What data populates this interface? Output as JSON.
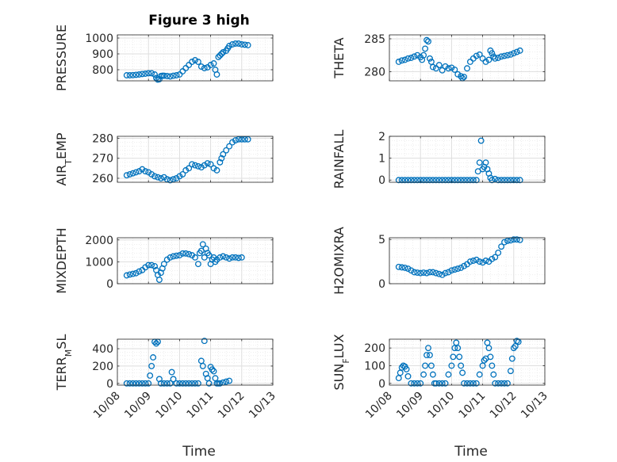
{
  "figure": {
    "title": "Figure 3 high",
    "xlabel": "Time",
    "x_ticks": [
      "10/08",
      "10/09",
      "10/10",
      "10/11",
      "10/12",
      "10/13"
    ],
    "marker_color": "#0072bd",
    "grid": "major and minor dotted",
    "marker": "open circle"
  },
  "chart_data": [
    {
      "type": "scatter",
      "ylabel": "PRESSURE",
      "yticks": [
        "800",
        "900",
        "1000"
      ],
      "ylim": [
        730,
        1020
      ],
      "x_range": [
        "10/08",
        "10/13"
      ],
      "x": [
        8.3,
        8.4,
        8.5,
        8.6,
        8.7,
        8.8,
        8.9,
        9.0,
        9.1,
        9.2,
        9.25,
        9.3,
        9.35,
        9.4,
        9.45,
        9.5,
        9.6,
        9.7,
        9.8,
        9.9,
        10.0,
        10.1,
        10.2,
        10.3,
        10.4,
        10.5,
        10.6,
        10.7,
        10.8,
        10.9,
        11.0,
        11.1,
        11.15,
        11.2,
        11.25,
        11.3,
        11.35,
        11.4,
        11.5,
        11.55,
        11.6,
        11.7,
        11.8,
        11.9,
        12.0,
        12.1,
        12.2
      ],
      "y": [
        765,
        765,
        766,
        768,
        770,
        773,
        775,
        778,
        778,
        770,
        748,
        738,
        740,
        760,
        762,
        762,
        760,
        758,
        762,
        765,
        770,
        790,
        810,
        830,
        850,
        860,
        850,
        820,
        810,
        815,
        830,
        840,
        800,
        770,
        880,
        890,
        900,
        910,
        920,
        935,
        950,
        960,
        965,
        965,
        960,
        958,
        955
      ]
    },
    {
      "type": "scatter",
      "ylabel": "THETA",
      "yticks": [
        "280",
        "285"
      ],
      "ylim": [
        278.6,
        285.6
      ],
      "x_range": [
        "10/08",
        "10/13"
      ],
      "x": [
        8.3,
        8.4,
        8.5,
        8.6,
        8.7,
        8.8,
        8.9,
        9.0,
        9.05,
        9.1,
        9.15,
        9.2,
        9.25,
        9.3,
        9.35,
        9.4,
        9.5,
        9.6,
        9.7,
        9.8,
        9.9,
        10.0,
        10.1,
        10.2,
        10.3,
        10.35,
        10.4,
        10.5,
        10.6,
        10.7,
        10.8,
        10.9,
        11.0,
        11.1,
        11.2,
        11.25,
        11.3,
        11.35,
        11.4,
        11.5,
        11.6,
        11.7,
        11.8,
        11.9,
        12.0,
        12.1,
        12.2
      ],
      "y": [
        281.5,
        281.7,
        281.8,
        282.0,
        282.1,
        282.3,
        282.5,
        282.2,
        281.8,
        282.5,
        283.5,
        284.8,
        284.6,
        282.0,
        281.5,
        280.7,
        280.5,
        281.0,
        280.2,
        280.8,
        280.5,
        280.6,
        280.3,
        279.6,
        279.3,
        279.0,
        279.2,
        280.5,
        281.5,
        282.0,
        282.4,
        282.6,
        282.0,
        281.5,
        281.8,
        283.2,
        282.8,
        282.3,
        282.0,
        282.1,
        282.3,
        282.4,
        282.5,
        282.6,
        282.8,
        283.0,
        283.2
      ]
    },
    {
      "type": "scatter",
      "ylabel": "AIR_TEMP",
      "yticks": [
        "260",
        "270",
        "280"
      ],
      "ylim": [
        258,
        281
      ],
      "x_range": [
        "10/08",
        "10/13"
      ],
      "x": [
        8.3,
        8.4,
        8.5,
        8.6,
        8.7,
        8.8,
        8.9,
        9.0,
        9.1,
        9.2,
        9.3,
        9.4,
        9.5,
        9.6,
        9.7,
        9.8,
        9.9,
        10.0,
        10.1,
        10.2,
        10.3,
        10.4,
        10.5,
        10.6,
        10.7,
        10.8,
        10.9,
        11.0,
        11.1,
        11.2,
        11.3,
        11.35,
        11.4,
        11.5,
        11.6,
        11.7,
        11.8,
        11.9,
        12.0,
        12.1,
        12.2
      ],
      "y": [
        261.5,
        262,
        262.5,
        263,
        263.5,
        264.5,
        263.5,
        263,
        262,
        261,
        260.5,
        260,
        260.5,
        259.5,
        259,
        259.5,
        260,
        261,
        262,
        264,
        265,
        267,
        266.5,
        266,
        265.5,
        266.5,
        267.5,
        267,
        265,
        264,
        268,
        270,
        272,
        274,
        276,
        278,
        279,
        279.5,
        279.5,
        279.5,
        279.5
      ]
    },
    {
      "type": "scatter",
      "ylabel": "RAINFALL",
      "yticks": [
        "0",
        "1",
        "2"
      ],
      "ylim": [
        -0.1,
        2.0
      ],
      "x_range": [
        "10/08",
        "10/13"
      ],
      "x": [
        8.3,
        8.4,
        8.5,
        8.6,
        8.7,
        8.8,
        8.9,
        9.0,
        9.1,
        9.2,
        9.3,
        9.4,
        9.5,
        9.6,
        9.7,
        9.8,
        9.9,
        10.0,
        10.1,
        10.2,
        10.3,
        10.4,
        10.5,
        10.6,
        10.7,
        10.8,
        10.85,
        10.9,
        10.95,
        11.0,
        11.05,
        11.1,
        11.15,
        11.2,
        11.25,
        11.3,
        11.4,
        11.5,
        11.6,
        11.7,
        11.8,
        11.9,
        12.0,
        12.1,
        12.2
      ],
      "y": [
        0,
        0,
        0,
        0,
        0,
        0,
        0,
        0,
        0,
        0,
        0,
        0,
        0,
        0,
        0,
        0,
        0,
        0,
        0,
        0,
        0,
        0,
        0,
        0,
        0,
        0,
        0.4,
        0.8,
        1.8,
        0.5,
        0.6,
        0.8,
        0.5,
        0.3,
        0.1,
        0.0,
        0.05,
        0,
        0,
        0,
        0,
        0,
        0,
        0,
        0
      ]
    },
    {
      "type": "scatter",
      "ylabel": "MIXDEPTH",
      "yticks": [
        "0",
        "1000",
        "2000"
      ],
      "ylim": [
        0,
        2100
      ],
      "x_range": [
        "10/08",
        "10/13"
      ],
      "x": [
        8.3,
        8.4,
        8.5,
        8.6,
        8.7,
        8.8,
        8.9,
        9.0,
        9.1,
        9.2,
        9.25,
        9.3,
        9.35,
        9.4,
        9.45,
        9.5,
        9.6,
        9.7,
        9.8,
        9.9,
        10.0,
        10.1,
        10.2,
        10.3,
        10.4,
        10.5,
        10.6,
        10.65,
        10.7,
        10.75,
        10.8,
        10.85,
        10.9,
        10.95,
        11.0,
        11.05,
        11.1,
        11.15,
        11.2,
        11.3,
        11.4,
        11.5,
        11.6,
        11.7,
        11.8,
        11.9,
        12.0
      ],
      "y": [
        380,
        420,
        450,
        480,
        560,
        620,
        750,
        850,
        850,
        800,
        620,
        400,
        180,
        500,
        700,
        900,
        1100,
        1200,
        1250,
        1280,
        1300,
        1380,
        1380,
        1350,
        1300,
        1200,
        900,
        1400,
        1500,
        1800,
        1200,
        1600,
        1400,
        1300,
        900,
        1100,
        1200,
        1000,
        1100,
        1200,
        1250,
        1200,
        1150,
        1200,
        1200,
        1180,
        1200
      ]
    },
    {
      "type": "scatter",
      "ylabel": "H2OMIXRA",
      "yticks": [
        "0",
        "5"
      ],
      "ylim": [
        0,
        5.2
      ],
      "x_range": [
        "10/08",
        "10/13"
      ],
      "x": [
        8.3,
        8.4,
        8.5,
        8.6,
        8.7,
        8.8,
        8.9,
        9.0,
        9.1,
        9.2,
        9.3,
        9.4,
        9.5,
        9.6,
        9.7,
        9.8,
        9.9,
        10.0,
        10.1,
        10.2,
        10.3,
        10.4,
        10.5,
        10.6,
        10.7,
        10.8,
        10.9,
        11.0,
        11.1,
        11.2,
        11.3,
        11.4,
        11.5,
        11.6,
        11.7,
        11.8,
        11.9,
        12.0,
        12.1,
        12.2
      ],
      "y": [
        1.9,
        1.85,
        1.8,
        1.7,
        1.5,
        1.3,
        1.25,
        1.2,
        1.25,
        1.2,
        1.3,
        1.3,
        1.2,
        1.1,
        1.0,
        1.2,
        1.3,
        1.5,
        1.6,
        1.7,
        1.8,
        2.0,
        2.2,
        2.5,
        2.6,
        2.7,
        2.5,
        2.4,
        2.6,
        2.5,
        2.8,
        3.0,
        3.5,
        4.2,
        4.7,
        4.85,
        4.9,
        5.0,
        5.0,
        4.95
      ]
    },
    {
      "type": "scatter",
      "ylabel": "TERR_MSL",
      "yticks": [
        "0",
        "200",
        "400"
      ],
      "ylim": [
        -20,
        510
      ],
      "x_range": [
        "10/08",
        "10/13"
      ],
      "x": [
        8.3,
        8.4,
        8.5,
        8.6,
        8.7,
        8.8,
        8.9,
        9.0,
        9.05,
        9.1,
        9.15,
        9.2,
        9.25,
        9.3,
        9.35,
        9.4,
        9.5,
        9.6,
        9.7,
        9.75,
        9.8,
        9.9,
        10.0,
        10.1,
        10.2,
        10.3,
        10.4,
        10.5,
        10.6,
        10.7,
        10.75,
        10.8,
        10.85,
        10.9,
        10.95,
        11.0,
        11.05,
        11.1,
        11.15,
        11.2,
        11.25,
        11.3,
        11.4,
        11.5,
        11.6
      ],
      "y": [
        0,
        0,
        0,
        0,
        0,
        0,
        0,
        0,
        90,
        200,
        300,
        480,
        460,
        480,
        50,
        0,
        0,
        0,
        0,
        130,
        50,
        0,
        0,
        0,
        0,
        0,
        0,
        0,
        0,
        260,
        200,
        490,
        110,
        60,
        0,
        190,
        160,
        140,
        60,
        0,
        0,
        0,
        10,
        20,
        30
      ]
    },
    {
      "type": "scatter",
      "ylabel": "SUN_FLUX",
      "yticks": [
        "0",
        "100",
        "200"
      ],
      "ylim": [
        -10,
        250
      ],
      "x_range": [
        "10/08",
        "10/13"
      ],
      "x": [
        8.3,
        8.35,
        8.4,
        8.45,
        8.5,
        8.55,
        8.6,
        8.7,
        8.8,
        8.9,
        9.0,
        9.1,
        9.15,
        9.2,
        9.25,
        9.3,
        9.35,
        9.4,
        9.45,
        9.5,
        9.6,
        9.7,
        9.8,
        9.9,
        10.0,
        10.05,
        10.1,
        10.15,
        10.2,
        10.25,
        10.3,
        10.35,
        10.4,
        10.5,
        10.6,
        10.7,
        10.8,
        10.9,
        11.0,
        11.05,
        11.1,
        11.15,
        11.2,
        11.25,
        11.3,
        11.35,
        11.4,
        11.5,
        11.6,
        11.7,
        11.8,
        11.9,
        11.95,
        12.0,
        12.05,
        12.1,
        12.15
      ],
      "y": [
        30,
        60,
        90,
        100,
        95,
        80,
        40,
        0,
        0,
        0,
        0,
        50,
        100,
        160,
        200,
        160,
        100,
        50,
        0,
        0,
        0,
        0,
        0,
        50,
        100,
        150,
        200,
        230,
        200,
        150,
        100,
        60,
        0,
        0,
        0,
        0,
        0,
        50,
        100,
        130,
        140,
        230,
        200,
        150,
        100,
        50,
        0,
        0,
        0,
        0,
        0,
        70,
        140,
        200,
        210,
        240,
        235
      ]
    }
  ]
}
